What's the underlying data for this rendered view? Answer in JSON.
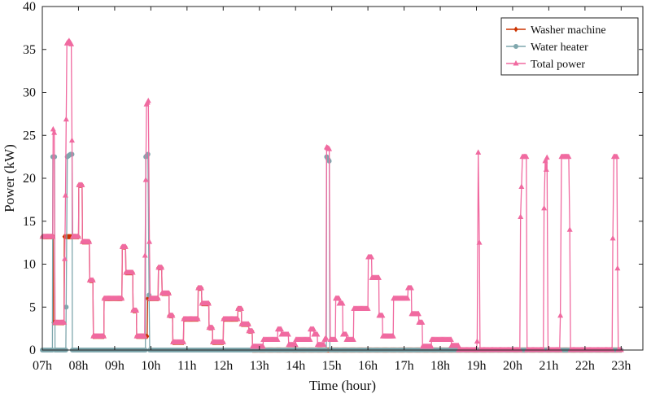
{
  "chart_data": {
    "type": "line",
    "title": "",
    "xlabel": "Time (hour)",
    "ylabel": "Power (kW)",
    "xlim": [
      7,
      23.6
    ],
    "ylim": [
      0,
      40
    ],
    "x_ticks": [
      7,
      8,
      9,
      10,
      11,
      12,
      13,
      14,
      15,
      16,
      17,
      18,
      19,
      20,
      21,
      22,
      23
    ],
    "x_tick_labels": [
      "07h",
      "08h",
      "09h",
      "10h",
      "11h",
      "12h",
      "13h",
      "14h",
      "15h",
      "16h",
      "17h",
      "18h",
      "19h",
      "20h",
      "21h",
      "22h",
      "23h"
    ],
    "y_ticks": [
      0,
      5,
      10,
      15,
      20,
      25,
      30,
      35,
      40
    ],
    "y_tick_labels": [
      "0",
      "5",
      "10",
      "15",
      "20",
      "25",
      "30",
      "35",
      "40"
    ],
    "grid": false,
    "legend_position": "top-right",
    "series": [
      {
        "name": "Washer machine",
        "color": "#cc3300",
        "marker": "diamond",
        "points": [
          [
            7.0,
            13.2
          ],
          [
            7.3,
            13.2
          ],
          [
            7.31,
            3.2
          ],
          [
            7.6,
            3.2
          ],
          [
            7.61,
            13.2
          ],
          [
            8.0,
            13.2
          ],
          [
            8.01,
            19.2
          ],
          [
            8.1,
            19.2
          ],
          [
            8.11,
            12.6
          ],
          [
            8.3,
            12.6
          ],
          [
            8.31,
            8.1
          ],
          [
            8.4,
            8.1
          ],
          [
            8.41,
            1.6
          ],
          [
            8.7,
            1.6
          ],
          [
            8.71,
            6.0
          ],
          [
            9.2,
            6.0
          ],
          [
            9.21,
            12.0
          ],
          [
            9.3,
            12.0
          ],
          [
            9.31,
            9.0
          ],
          [
            9.5,
            9.0
          ],
          [
            9.51,
            4.6
          ],
          [
            9.6,
            4.6
          ],
          [
            9.61,
            1.6
          ],
          [
            9.9,
            1.6
          ],
          [
            9.91,
            6.0
          ],
          [
            10.2,
            6.0
          ],
          [
            10.21,
            9.6
          ],
          [
            10.3,
            9.6
          ],
          [
            10.31,
            6.6
          ],
          [
            10.5,
            6.6
          ],
          [
            10.51,
            4.0
          ],
          [
            10.6,
            4.0
          ],
          [
            10.61,
            0.9
          ],
          [
            10.9,
            0.9
          ],
          [
            10.91,
            3.6
          ],
          [
            11.3,
            3.6
          ],
          [
            11.31,
            7.2
          ],
          [
            11.4,
            7.2
          ],
          [
            11.41,
            5.4
          ],
          [
            11.6,
            5.4
          ],
          [
            11.61,
            2.6
          ],
          [
            11.7,
            2.6
          ],
          [
            11.71,
            0.9
          ],
          [
            12.0,
            0.9
          ],
          [
            12.01,
            3.6
          ],
          [
            12.4,
            3.6
          ],
          [
            12.41,
            4.8
          ],
          [
            12.5,
            4.8
          ],
          [
            12.51,
            3.0
          ],
          [
            12.7,
            3.0
          ],
          [
            12.71,
            2.2
          ],
          [
            12.8,
            2.2
          ],
          [
            12.81,
            0
          ],
          [
            23.0,
            0
          ]
        ]
      },
      {
        "name": "Water heater",
        "color": "#7fa7ad",
        "marker": "circle",
        "points": [
          [
            7.0,
            0
          ],
          [
            7.28,
            0
          ],
          [
            7.29,
            22.5
          ],
          [
            7.34,
            22.5
          ],
          [
            7.35,
            0
          ],
          [
            7.65,
            0
          ],
          [
            7.66,
            5.0
          ],
          [
            7.69,
            22.5
          ],
          [
            7.78,
            22.8
          ],
          [
            7.82,
            22.8
          ],
          [
            7.83,
            0
          ],
          [
            9.85,
            0
          ],
          [
            9.86,
            22.5
          ],
          [
            9.92,
            22.8
          ],
          [
            9.95,
            6.4
          ],
          [
            9.97,
            0
          ],
          [
            14.85,
            0
          ],
          [
            14.86,
            22.5
          ],
          [
            14.93,
            22.0
          ],
          [
            14.95,
            0
          ],
          [
            23.0,
            0
          ]
        ]
      },
      {
        "name": "Total power",
        "color": "#f06aa0",
        "marker": "triangle",
        "points": [
          [
            7.0,
            13.2
          ],
          [
            7.29,
            13.2
          ],
          [
            7.3,
            25.7
          ],
          [
            7.33,
            25.3
          ],
          [
            7.35,
            3.2
          ],
          [
            7.6,
            3.2
          ],
          [
            7.64,
            18.0
          ],
          [
            7.68,
            35.7
          ],
          [
            7.74,
            36.0
          ],
          [
            7.8,
            35.6
          ],
          [
            7.84,
            13.2
          ],
          [
            8.0,
            13.2
          ],
          [
            8.01,
            19.2
          ],
          [
            8.1,
            19.2
          ],
          [
            8.11,
            12.6
          ],
          [
            8.3,
            12.6
          ],
          [
            8.31,
            8.1
          ],
          [
            8.4,
            8.1
          ],
          [
            8.41,
            1.6
          ],
          [
            8.7,
            1.6
          ],
          [
            8.71,
            6.0
          ],
          [
            9.2,
            6.0
          ],
          [
            9.21,
            12.0
          ],
          [
            9.3,
            12.0
          ],
          [
            9.31,
            9.0
          ],
          [
            9.5,
            9.0
          ],
          [
            9.51,
            4.6
          ],
          [
            9.6,
            4.6
          ],
          [
            9.61,
            1.6
          ],
          [
            9.83,
            1.6
          ],
          [
            9.84,
            11.0
          ],
          [
            9.88,
            28.6
          ],
          [
            9.93,
            29.0
          ],
          [
            9.96,
            12.6
          ],
          [
            9.98,
            6.0
          ],
          [
            10.2,
            6.0
          ],
          [
            10.21,
            9.6
          ],
          [
            10.3,
            9.6
          ],
          [
            10.31,
            6.6
          ],
          [
            10.5,
            6.6
          ],
          [
            10.51,
            4.0
          ],
          [
            10.6,
            4.0
          ],
          [
            10.61,
            0.9
          ],
          [
            10.9,
            0.9
          ],
          [
            10.91,
            3.6
          ],
          [
            11.3,
            3.6
          ],
          [
            11.31,
            7.2
          ],
          [
            11.4,
            7.2
          ],
          [
            11.41,
            5.4
          ],
          [
            11.6,
            5.4
          ],
          [
            11.61,
            2.6
          ],
          [
            11.7,
            2.6
          ],
          [
            11.71,
            0.9
          ],
          [
            12.0,
            0.9
          ],
          [
            12.01,
            3.6
          ],
          [
            12.4,
            3.6
          ],
          [
            12.41,
            4.8
          ],
          [
            12.5,
            4.8
          ],
          [
            12.51,
            3.0
          ],
          [
            12.7,
            3.0
          ],
          [
            12.71,
            2.2
          ],
          [
            12.8,
            2.2
          ],
          [
            12.81,
            0.4
          ],
          [
            13.1,
            0.4
          ],
          [
            13.11,
            1.2
          ],
          [
            13.5,
            1.2
          ],
          [
            13.51,
            2.4
          ],
          [
            13.6,
            2.4
          ],
          [
            13.61,
            1.8
          ],
          [
            13.8,
            1.8
          ],
          [
            13.81,
            0.6
          ],
          [
            14.0,
            0.6
          ],
          [
            14.01,
            1.2
          ],
          [
            14.4,
            1.2
          ],
          [
            14.41,
            2.4
          ],
          [
            14.5,
            2.4
          ],
          [
            14.51,
            1.8
          ],
          [
            14.6,
            1.8
          ],
          [
            14.61,
            0.6
          ],
          [
            14.78,
            0.6
          ],
          [
            14.8,
            1.2
          ],
          [
            14.84,
            1.4
          ],
          [
            14.86,
            23.6
          ],
          [
            14.93,
            23.4
          ],
          [
            14.96,
            1.2
          ],
          [
            15.1,
            1.2
          ],
          [
            15.11,
            6.0
          ],
          [
            15.2,
            6.0
          ],
          [
            15.21,
            5.4
          ],
          [
            15.3,
            5.4
          ],
          [
            15.31,
            1.8
          ],
          [
            15.4,
            1.8
          ],
          [
            15.41,
            1.2
          ],
          [
            15.6,
            1.2
          ],
          [
            15.61,
            4.8
          ],
          [
            16.0,
            4.8
          ],
          [
            16.01,
            10.8
          ],
          [
            16.1,
            10.8
          ],
          [
            16.11,
            8.4
          ],
          [
            16.3,
            8.4
          ],
          [
            16.31,
            4.0
          ],
          [
            16.4,
            4.0
          ],
          [
            16.41,
            1.6
          ],
          [
            16.7,
            1.6
          ],
          [
            16.71,
            6.0
          ],
          [
            17.1,
            6.0
          ],
          [
            17.11,
            7.2
          ],
          [
            17.2,
            7.2
          ],
          [
            17.21,
            4.2
          ],
          [
            17.4,
            4.2
          ],
          [
            17.41,
            3.2
          ],
          [
            17.5,
            3.2
          ],
          [
            17.51,
            0.4
          ],
          [
            17.75,
            0.4
          ],
          [
            17.76,
            1.2
          ],
          [
            18.3,
            1.2
          ],
          [
            18.31,
            0.5
          ],
          [
            18.5,
            0.5
          ],
          [
            18.51,
            0
          ],
          [
            19.0,
            0
          ],
          [
            19.02,
            1.0
          ],
          [
            19.05,
            23.0
          ],
          [
            19.08,
            12.5
          ],
          [
            19.1,
            0
          ],
          [
            20.2,
            0
          ],
          [
            20.22,
            15.5
          ],
          [
            20.27,
            22.5
          ],
          [
            20.38,
            22.5
          ],
          [
            20.4,
            0
          ],
          [
            20.85,
            0
          ],
          [
            20.87,
            16.5
          ],
          [
            20.9,
            22.0
          ],
          [
            20.93,
            21.0
          ],
          [
            20.95,
            22.4
          ],
          [
            20.98,
            0
          ],
          [
            21.3,
            0
          ],
          [
            21.32,
            4.0
          ],
          [
            21.35,
            22.5
          ],
          [
            21.55,
            22.5
          ],
          [
            21.58,
            14.0
          ],
          [
            21.6,
            0
          ],
          [
            22.75,
            0
          ],
          [
            22.77,
            13.0
          ],
          [
            22.8,
            22.5
          ],
          [
            22.88,
            22.5
          ],
          [
            22.9,
            9.5
          ],
          [
            22.92,
            0
          ],
          [
            23.0,
            0
          ]
        ]
      }
    ]
  }
}
